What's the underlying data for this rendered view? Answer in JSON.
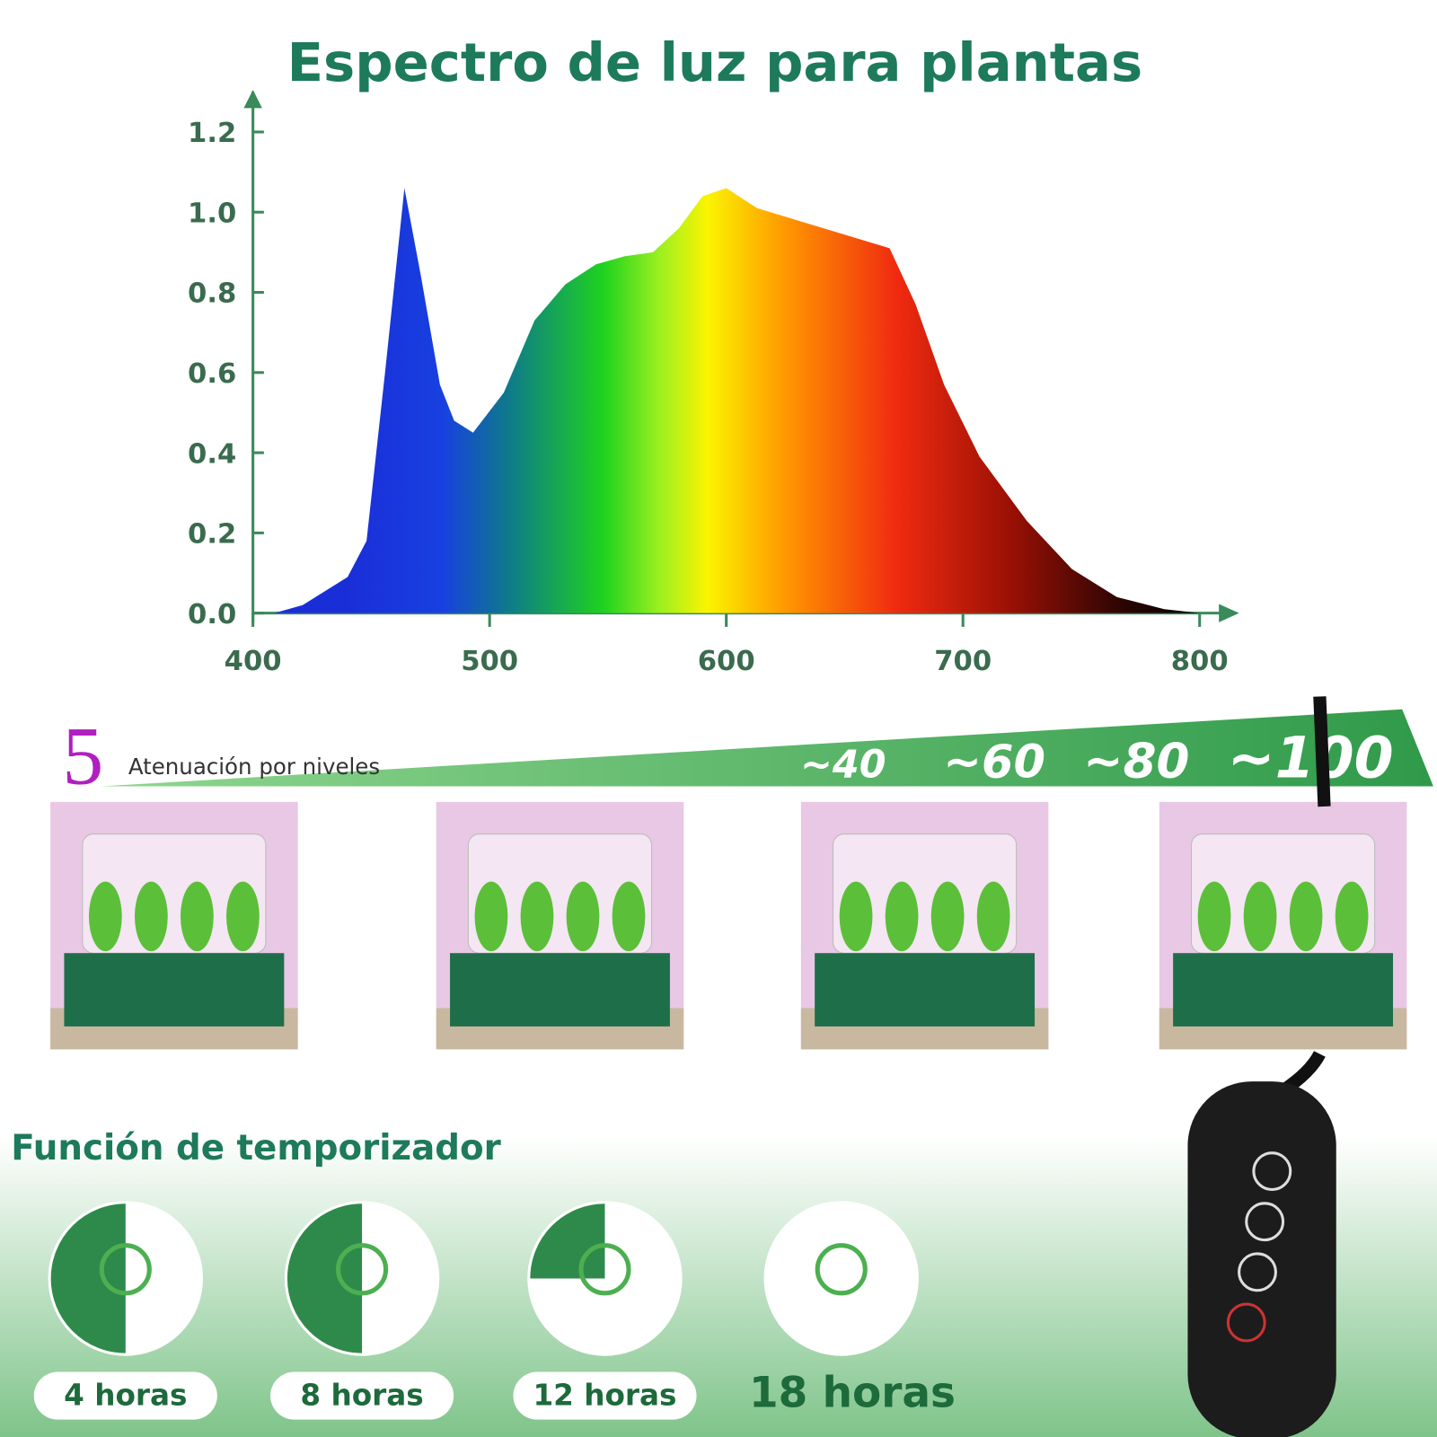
{
  "chart_data": {
    "type": "area",
    "title": "Espectro de luz para plantas",
    "x": [
      409,
      421,
      440,
      448,
      456,
      464,
      471,
      479,
      485,
      493,
      506,
      519,
      532,
      545,
      557,
      569,
      580,
      590,
      600,
      613,
      669,
      680,
      692,
      707,
      727,
      746,
      765,
      785,
      800
    ],
    "values": [
      0,
      0.02,
      0.09,
      0.18,
      0.61,
      1.06,
      0.84,
      0.57,
      0.48,
      0.45,
      0.55,
      0.73,
      0.82,
      0.87,
      0.89,
      0.9,
      0.96,
      1.04,
      1.06,
      1.01,
      0.91,
      0.77,
      0.57,
      0.39,
      0.23,
      0.11,
      0.04,
      0.01,
      0
    ],
    "xlim": [
      400,
      800
    ],
    "ylim": [
      0,
      1.2
    ],
    "xticks": [
      400,
      500,
      600,
      700,
      800
    ],
    "yticks": [
      {
        "value": 0,
        "label": "0.0"
      },
      0.2,
      0.4,
      0.6,
      {
        "value": 1,
        "label": "1.0"
      },
      0.8,
      1.2
    ]
  },
  "dimming": {
    "number": "5",
    "label": "Atenuación por niveles",
    "levels": [
      "~40",
      "~60",
      "~80",
      "~100"
    ]
  },
  "timer": {
    "title": "Función de temporizador",
    "options": [
      "4 horas",
      "8 horas",
      "12 horas",
      "18 horas"
    ]
  }
}
